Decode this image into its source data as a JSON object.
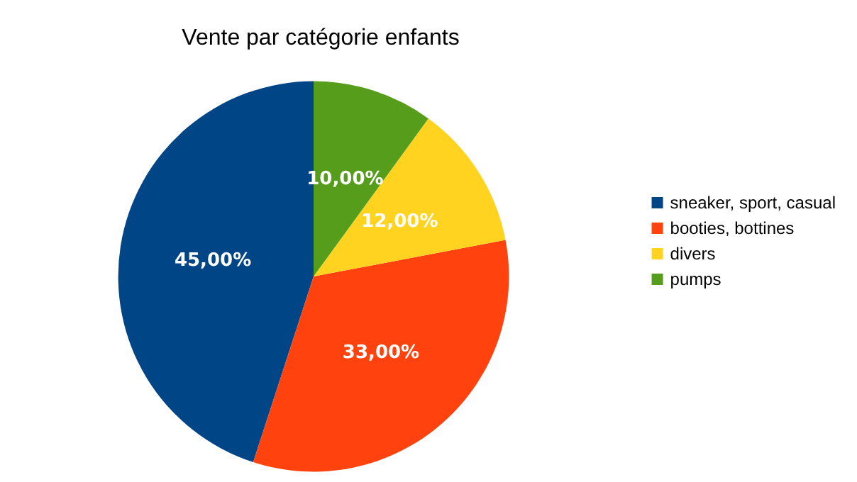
{
  "chart_data": {
    "type": "pie",
    "title": "Vente par catégorie enfants",
    "categories": [
      "sneaker, sport, casual",
      "booties, bottines",
      "divers",
      "pumps"
    ],
    "values": [
      45,
      33,
      12,
      10
    ],
    "value_labels": [
      "45,00%",
      "33,00%",
      "12,00%",
      "10,00%"
    ],
    "colors": [
      "#004586",
      "#ff420e",
      "#ffd320",
      "#579d1c"
    ],
    "legend": "right"
  }
}
